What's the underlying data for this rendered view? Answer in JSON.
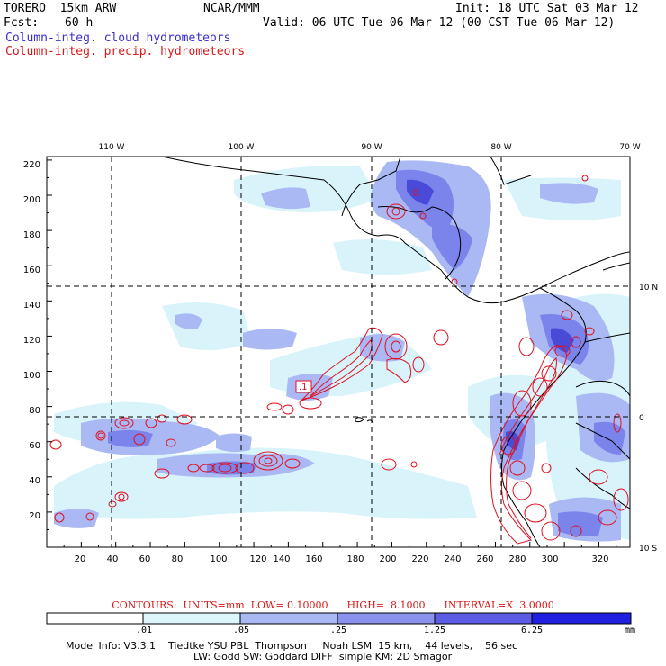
{
  "header": {
    "model_name": "TORERO  15km ARW",
    "center": "NCAR/MMM",
    "init": "Init: 18 UTC Sat 03 Mar 12",
    "fcst_label": "Fcst:",
    "fcst_value": "60 h",
    "valid": "Valid: 06 UTC Tue 06 Mar 12 (00 CST Tue 06 Mar 12)",
    "field1": "Column-integ. cloud hydrometeors",
    "field2": "Column-integ. precip. hydrometeors"
  },
  "map": {
    "lon_labels": [
      "110 W",
      "100 W",
      "90 W",
      "80 W",
      "70 W"
    ],
    "lat_labels": [
      "10 N",
      "0",
      "10 S"
    ],
    "y_ticks": [
      "220",
      "200",
      "180",
      "160",
      "140",
      "120",
      "100",
      "80",
      "60",
      "40",
      "20"
    ],
    "x_ticks": [
      "20",
      "40",
      "60",
      "80",
      "100",
      "120",
      "140",
      "160",
      "180",
      "200",
      "220",
      "240",
      "260",
      "280",
      "300",
      "320"
    ],
    "contour_label": ".1",
    "colors": {
      "cloud_low": "#d8f4fa",
      "cloud_mid": "#a8b4f4",
      "cloud_high": "#6e78e8",
      "cloud_max": "#4a4ad8",
      "precip": "#e01020",
      "coast": "#000000"
    }
  },
  "colorbar": {
    "values": [
      ".01",
      ".05",
      ".25",
      "1.25",
      "6.25"
    ],
    "unit": "mm",
    "colors": [
      "#ffffff",
      "#ddf6fb",
      "#aab8f4",
      "#8a92ee",
      "#5c5ce4",
      "#2020e0"
    ]
  },
  "contours_text": "CONTOURS:  UNITS=mm  LOW= 0.10000      HIGH=  8.1000      INTERVAL=X  3.0000",
  "model_info": {
    "line1": "Model Info: V3.3.1    Tiedtke YSU PBL  Thompson     Noah LSM  15 km,    44 levels,    56 sec",
    "line2": "LW: Godd SW: Goddard DIFF  simple KM: 2D Smagor"
  }
}
